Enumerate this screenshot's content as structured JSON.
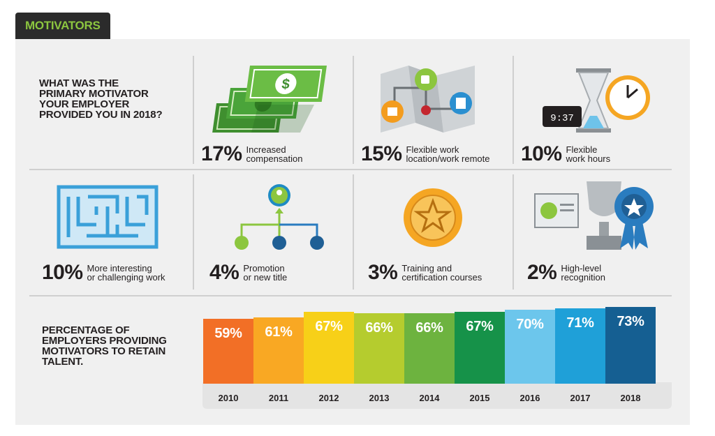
{
  "header": {
    "tag": "MOTIVATORS"
  },
  "survey": {
    "question": "WHAT WAS THE\nPRIMARY MOTIVATOR\nYOUR EMPLOYER\nPROVIDED YOU IN 2018?",
    "items": [
      {
        "pct": "17%",
        "label": "Increased\ncompensation",
        "icon": "money-icon"
      },
      {
        "pct": "15%",
        "label": "Flexible work\nlocation/work remote",
        "icon": "map-icon"
      },
      {
        "pct": "10%",
        "label": "Flexible\nwork hours",
        "icon": "clock-hourglass-icon"
      },
      {
        "pct": "10%",
        "label": "More interesting\nor challenging work",
        "icon": "maze-icon"
      },
      {
        "pct": "4%",
        "label": "Promotion\nor new title",
        "icon": "promotion-tree-icon"
      },
      {
        "pct": "3%",
        "label": "Training and\ncertification courses",
        "icon": "medal-icon"
      },
      {
        "pct": "2%",
        "label": "High-level\nrecognition",
        "icon": "trophy-icon"
      }
    ]
  },
  "retention": {
    "title": "PERCENTAGE OF\nEMPLOYERS PROVIDING\nMOTIVATORS TO RETAIN\nTALENT."
  },
  "chart_data": {
    "type": "bar",
    "title": "PERCENTAGE OF EMPLOYERS PROVIDING MOTIVATORS TO RETAIN TALENT.",
    "categories": [
      "2010",
      "2011",
      "2012",
      "2013",
      "2014",
      "2015",
      "2016",
      "2017",
      "2018"
    ],
    "values": [
      59,
      61,
      67,
      66,
      66,
      67,
      70,
      71,
      73
    ],
    "value_labels": [
      "59%",
      "61%",
      "67%",
      "66%",
      "66%",
      "67%",
      "70%",
      "71%",
      "73%"
    ],
    "colors": [
      "#f26f26",
      "#f9a823",
      "#f7d018",
      "#b5cc2e",
      "#6db33f",
      "#169249",
      "#6cc6ec",
      "#1fa0d8",
      "#155f92"
    ],
    "ylim": [
      0,
      80
    ]
  }
}
